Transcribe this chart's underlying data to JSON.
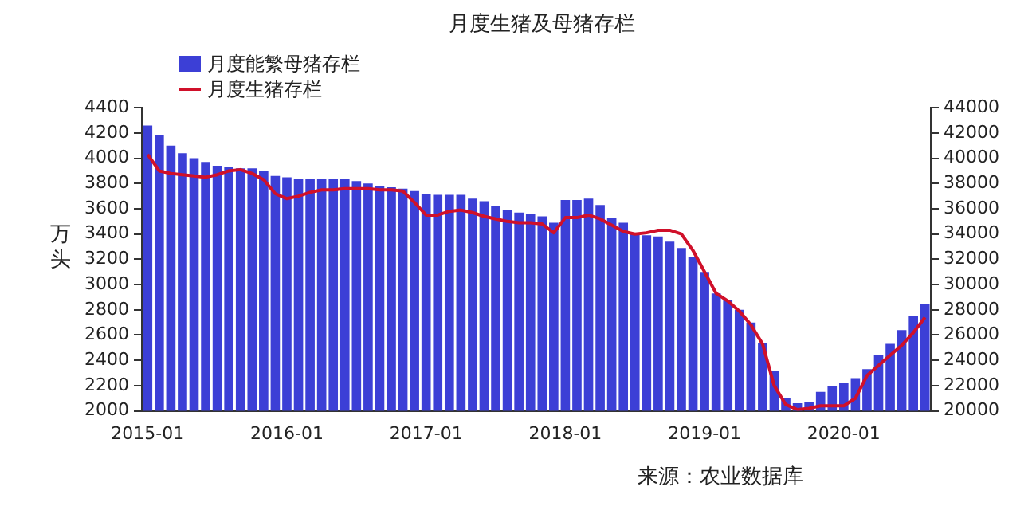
{
  "chart_data": {
    "type": "bar",
    "title": "月度生猪及母猪存栏",
    "ylabel": "万头",
    "categories": [
      "2015-01",
      null,
      null,
      null,
      null,
      null,
      null,
      null,
      null,
      null,
      null,
      null,
      "2016-01",
      null,
      null,
      null,
      null,
      null,
      null,
      null,
      null,
      null,
      null,
      null,
      "2017-01",
      null,
      null,
      null,
      null,
      null,
      null,
      null,
      null,
      null,
      null,
      null,
      "2018-01",
      null,
      null,
      null,
      null,
      null,
      null,
      null,
      null,
      null,
      null,
      null,
      "2019-01",
      null,
      null,
      null,
      null,
      null,
      null,
      null,
      null,
      null,
      null,
      null,
      "2020-01",
      null,
      null,
      null,
      null,
      null,
      null,
      null
    ],
    "series": [
      {
        "name": "月度能繁母猪存栏",
        "color": "#3c3fd6",
        "values": [
          4260,
          4180,
          4100,
          4040,
          4000,
          3970,
          3940,
          3930,
          3920,
          3920,
          3900,
          3860,
          3850,
          3840,
          3840,
          3840,
          3840,
          3840,
          3820,
          3800,
          3780,
          3770,
          3760,
          3740,
          3720,
          3710,
          3710,
          3710,
          3680,
          3660,
          3620,
          3590,
          3570,
          3560,
          3540,
          3490,
          3670,
          3670,
          3680,
          3630,
          3530,
          3490,
          3410,
          3390,
          3380,
          3340,
          3290,
          3220,
          3100,
          2930,
          2880,
          2800,
          2700,
          2540,
          2320,
          2100,
          2060,
          2070,
          2150,
          2200,
          2220,
          2260,
          2330,
          2440,
          2530,
          2640,
          2750,
          2850
        ]
      },
      {
        "name": "月度生猪存栏",
        "type": "line",
        "axis": "y2",
        "color": "#d0102a",
        "values": [
          40300,
          39000,
          38800,
          38700,
          38600,
          38500,
          38700,
          39000,
          39100,
          38800,
          38300,
          37200,
          36800,
          37000,
          37300,
          37500,
          37500,
          37600,
          37600,
          37600,
          37500,
          37500,
          37400,
          36500,
          35500,
          35500,
          35800,
          35900,
          35700,
          35400,
          35200,
          35000,
          34900,
          34900,
          34800,
          34100,
          35300,
          35300,
          35500,
          35200,
          34700,
          34200,
          34000,
          34100,
          34300,
          34300,
          34000,
          32700,
          31000,
          29300,
          28700,
          27900,
          26800,
          25300,
          22000,
          20500,
          20100,
          20200,
          20400,
          20400,
          20400,
          21000,
          22800,
          23600,
          24400,
          25200,
          26200,
          27400
        ]
      }
    ],
    "ylim": [
      2000,
      4400
    ],
    "yticks": [
      2000,
      2200,
      2400,
      2600,
      2800,
      3000,
      3200,
      3400,
      3600,
      3800,
      4000,
      4200,
      4400
    ],
    "y2lim": [
      20000,
      44000
    ],
    "y2ticks": [
      20000,
      22000,
      24000,
      26000,
      28000,
      30000,
      32000,
      34000,
      36000,
      38000,
      40000,
      42000,
      44000
    ],
    "grid": false,
    "legend": "top left",
    "marker": "none",
    "line_style": "solid",
    "annotations": [
      "来源：农业数据库"
    ]
  }
}
